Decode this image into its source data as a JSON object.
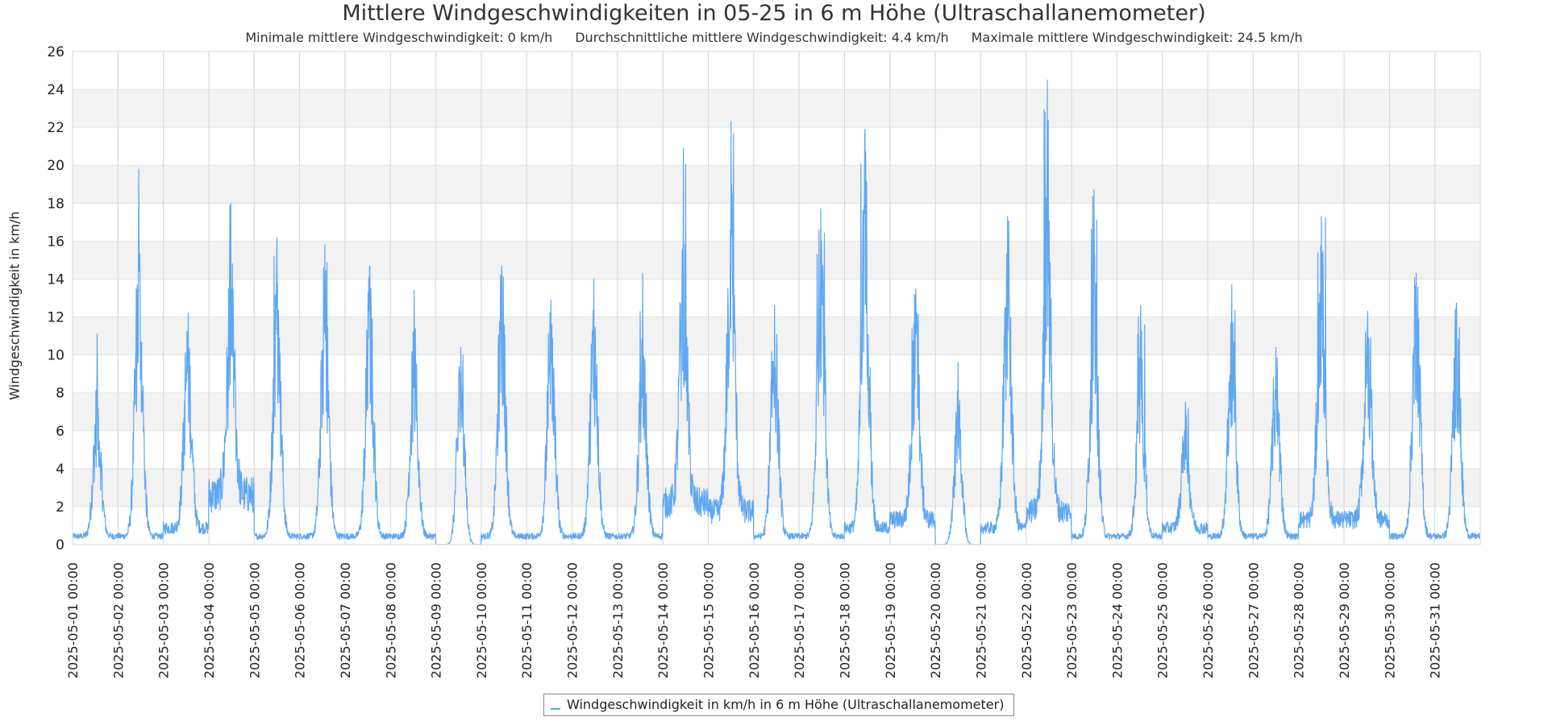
{
  "chart_data": {
    "type": "line",
    "title": "Mittlere Windgeschwindigkeiten in 05-25 in 6 m Höhe (Ultraschallanemometer)",
    "subtitle": {
      "min": "Minimale mittlere Windgeschwindigkeit: 0 km/h",
      "avg": "Durchschnittliche mittlere Windgeschwindigkeit: 4.4 km/h",
      "max": "Maximale mittlere Windgeschwindigkeit: 24.5 km/h"
    },
    "xlabel": "",
    "ylabel": "Windgeschwindigkeit in km/h",
    "ylim": [
      0,
      26
    ],
    "yticks": [
      0,
      2,
      4,
      6,
      8,
      10,
      12,
      14,
      16,
      18,
      20,
      22,
      24,
      26
    ],
    "xlim_days": [
      0,
      31
    ],
    "xticks": [
      "2025-05-01 00:00",
      "2025-05-02 00:00",
      "2025-05-03 00:00",
      "2025-05-04 00:00",
      "2025-05-05 00:00",
      "2025-05-06 00:00",
      "2025-05-07 00:00",
      "2025-05-08 00:00",
      "2025-05-09 00:00",
      "2025-05-10 00:00",
      "2025-05-11 00:00",
      "2025-05-12 00:00",
      "2025-05-13 00:00",
      "2025-05-14 00:00",
      "2025-05-15 00:00",
      "2025-05-16 00:00",
      "2025-05-17 00:00",
      "2025-05-18 00:00",
      "2025-05-19 00:00",
      "2025-05-20 00:00",
      "2025-05-21 00:00",
      "2025-05-22 00:00",
      "2025-05-23 00:00",
      "2025-05-24 00:00",
      "2025-05-25 00:00",
      "2025-05-26 00:00",
      "2025-05-27 00:00",
      "2025-05-28 00:00",
      "2025-05-29 00:00",
      "2025-05-30 00:00",
      "2025-05-31 00:00"
    ],
    "series": [
      {
        "name": "Windgeschwindigkeit in km/h in 6 m Höhe (Ultraschallanemometer)",
        "color": "#5fa7f2",
        "daily_profile": [
          {
            "day": "2025-05-01",
            "low": 0.5,
            "peak": 7.5,
            "max": 11.1
          },
          {
            "day": "2025-05-02",
            "low": 0.5,
            "peak": 14.5,
            "max": 19.8
          },
          {
            "day": "2025-05-03",
            "low": 1.0,
            "peak": 10.5,
            "max": 11.2
          },
          {
            "day": "2025-05-04",
            "low": 3.0,
            "peak": 13.5,
            "max": 18.0
          },
          {
            "day": "2025-05-05",
            "low": 0.5,
            "peak": 13.0,
            "max": 16.2
          },
          {
            "day": "2025-05-06",
            "low": 0.5,
            "peak": 13.0,
            "max": 15.8
          },
          {
            "day": "2025-05-07",
            "low": 0.5,
            "peak": 12.5,
            "max": 14.7
          },
          {
            "day": "2025-05-08",
            "low": 0.5,
            "peak": 10.0,
            "max": 13.4
          },
          {
            "day": "2025-05-09",
            "low": 0.0,
            "peak": 9.0,
            "max": 10.4
          },
          {
            "day": "2025-05-10",
            "low": 0.5,
            "peak": 13.0,
            "max": 14.7
          },
          {
            "day": "2025-05-11",
            "low": 0.5,
            "peak": 11.0,
            "max": 12.9
          },
          {
            "day": "2025-05-12",
            "low": 0.5,
            "peak": 11.5,
            "max": 14.0
          },
          {
            "day": "2025-05-13",
            "low": 0.5,
            "peak": 10.0,
            "max": 14.3
          },
          {
            "day": "2025-05-14",
            "low": 2.5,
            "peak": 15.0,
            "max": 20.9
          },
          {
            "day": "2025-05-15",
            "low": 2.0,
            "peak": 17.0,
            "max": 22.3
          },
          {
            "day": "2025-05-16",
            "low": 0.5,
            "peak": 11.0,
            "max": 12.6
          },
          {
            "day": "2025-05-17",
            "low": 0.5,
            "peak": 16.0,
            "max": 17.7
          },
          {
            "day": "2025-05-18",
            "low": 1.0,
            "peak": 18.0,
            "max": 21.9
          },
          {
            "day": "2025-05-19",
            "low": 1.5,
            "peak": 11.5,
            "max": 12.9
          },
          {
            "day": "2025-05-20",
            "low": 0.0,
            "peak": 7.0,
            "max": 9.6
          },
          {
            "day": "2025-05-21",
            "low": 1.0,
            "peak": 14.0,
            "max": 17.3
          },
          {
            "day": "2025-05-22",
            "low": 2.0,
            "peak": 16.5,
            "max": 24.5
          },
          {
            "day": "2025-05-23",
            "low": 0.5,
            "peak": 13.0,
            "max": 18.7
          },
          {
            "day": "2025-05-24",
            "low": 0.5,
            "peak": 9.0,
            "max": 12.6
          },
          {
            "day": "2025-05-25",
            "low": 1.0,
            "peak": 6.0,
            "max": 7.5
          },
          {
            "day": "2025-05-26",
            "low": 0.5,
            "peak": 11.0,
            "max": 13.7
          },
          {
            "day": "2025-05-27",
            "low": 0.5,
            "peak": 9.0,
            "max": 10.4
          },
          {
            "day": "2025-05-28",
            "low": 1.5,
            "peak": 14.0,
            "max": 17.3
          },
          {
            "day": "2025-05-29",
            "low": 1.5,
            "peak": 11.0,
            "max": 12.3
          },
          {
            "day": "2025-05-30",
            "low": 0.5,
            "peak": 13.5,
            "max": 14.3
          },
          {
            "day": "2025-05-31",
            "low": 0.5,
            "peak": 11.0,
            "max": 12.6
          }
        ]
      }
    ],
    "grid": true,
    "legend_position": "bottom-center"
  }
}
